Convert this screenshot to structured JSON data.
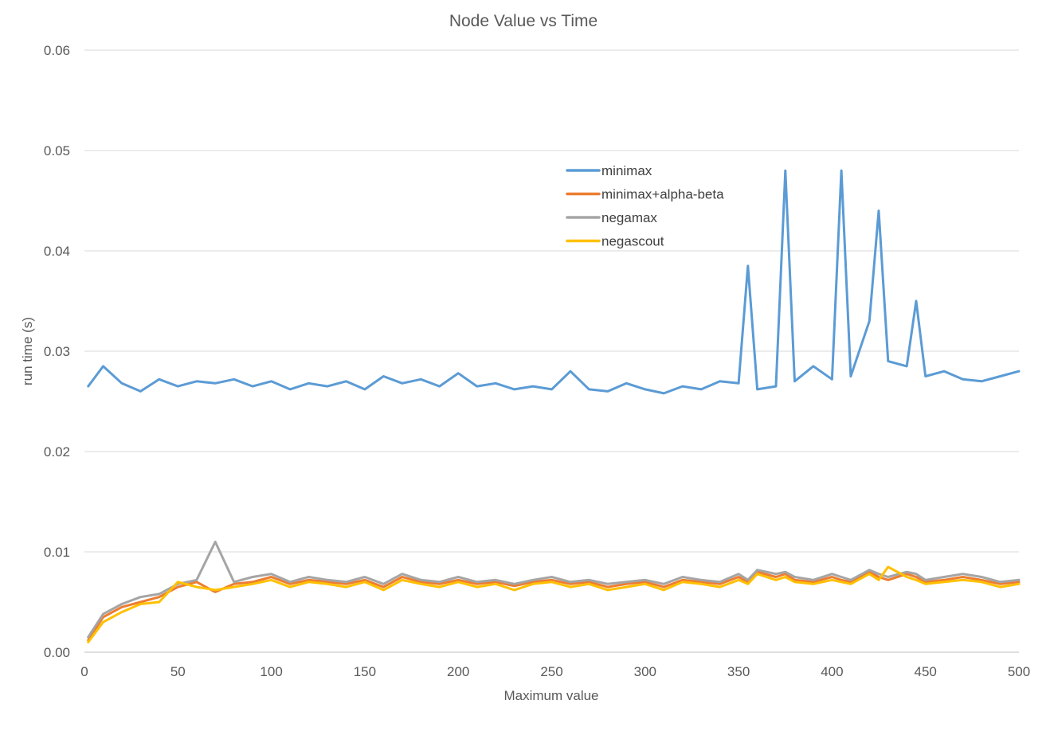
{
  "chart_data": {
    "type": "line",
    "title": "Node Value vs Time",
    "xlabel": "Maximum value",
    "ylabel": "run time (s)",
    "xlim": [
      0,
      500
    ],
    "ylim": [
      0,
      0.06
    ],
    "x_ticks": [
      "0",
      "50",
      "100",
      "150",
      "200",
      "250",
      "300",
      "350",
      "400",
      "450",
      "500"
    ],
    "y_ticks": [
      "0.00",
      "0.01",
      "0.02",
      "0.03",
      "0.04",
      "0.05",
      "0.06"
    ],
    "grid": "horizontal",
    "legend_position": "inside-top-center-right",
    "x": [
      2,
      10,
      20,
      30,
      40,
      50,
      60,
      70,
      80,
      90,
      100,
      110,
      120,
      130,
      140,
      150,
      160,
      170,
      180,
      190,
      200,
      210,
      220,
      230,
      240,
      250,
      260,
      270,
      280,
      290,
      300,
      310,
      320,
      330,
      340,
      350,
      355,
      360,
      370,
      375,
      380,
      390,
      400,
      405,
      410,
      420,
      425,
      430,
      440,
      445,
      450,
      460,
      470,
      480,
      490,
      500
    ],
    "series": [
      {
        "name": "minimax",
        "color": "#5b9bd5",
        "values": [
          0.0265,
          0.0285,
          0.0268,
          0.026,
          0.0272,
          0.0265,
          0.027,
          0.0268,
          0.0272,
          0.0265,
          0.027,
          0.0262,
          0.0268,
          0.0265,
          0.027,
          0.0262,
          0.0275,
          0.0268,
          0.0272,
          0.0265,
          0.0278,
          0.0265,
          0.0268,
          0.0262,
          0.0265,
          0.0262,
          0.028,
          0.0262,
          0.026,
          0.0268,
          0.0262,
          0.0258,
          0.0265,
          0.0262,
          0.027,
          0.0268,
          0.0385,
          0.0262,
          0.0265,
          0.048,
          0.027,
          0.0285,
          0.0272,
          0.048,
          0.0275,
          0.033,
          0.044,
          0.029,
          0.0285,
          0.035,
          0.0275,
          0.028,
          0.0272,
          0.027,
          0.0275,
          0.028
        ]
      },
      {
        "name": "minimax+alpha-beta",
        "color": "#ed7d31",
        "values": [
          0.0012,
          0.0035,
          0.0045,
          0.005,
          0.0055,
          0.0065,
          0.007,
          0.006,
          0.0068,
          0.007,
          0.0075,
          0.0068,
          0.0072,
          0.007,
          0.0068,
          0.0072,
          0.0065,
          0.0075,
          0.007,
          0.0068,
          0.0072,
          0.0068,
          0.007,
          0.0066,
          0.007,
          0.0072,
          0.0068,
          0.007,
          0.0065,
          0.0068,
          0.007,
          0.0065,
          0.0072,
          0.007,
          0.0068,
          0.0075,
          0.007,
          0.008,
          0.0075,
          0.0078,
          0.0072,
          0.007,
          0.0075,
          0.0072,
          0.007,
          0.008,
          0.0075,
          0.0072,
          0.0078,
          0.0075,
          0.007,
          0.0072,
          0.0075,
          0.0072,
          0.0068,
          0.007
        ]
      },
      {
        "name": "negamax",
        "color": "#a5a5a5",
        "values": [
          0.0015,
          0.0038,
          0.0048,
          0.0055,
          0.0058,
          0.0068,
          0.0072,
          0.011,
          0.007,
          0.0075,
          0.0078,
          0.007,
          0.0075,
          0.0072,
          0.007,
          0.0075,
          0.0068,
          0.0078,
          0.0072,
          0.007,
          0.0075,
          0.007,
          0.0072,
          0.0068,
          0.0072,
          0.0075,
          0.007,
          0.0072,
          0.0068,
          0.007,
          0.0072,
          0.0068,
          0.0075,
          0.0072,
          0.007,
          0.0078,
          0.0072,
          0.0082,
          0.0078,
          0.008,
          0.0075,
          0.0072,
          0.0078,
          0.0075,
          0.0072,
          0.0082,
          0.0078,
          0.0075,
          0.008,
          0.0078,
          0.0072,
          0.0075,
          0.0078,
          0.0075,
          0.007,
          0.0072
        ]
      },
      {
        "name": "negascout",
        "color": "#ffc000",
        "values": [
          0.001,
          0.003,
          0.004,
          0.0048,
          0.005,
          0.007,
          0.0065,
          0.0062,
          0.0065,
          0.0068,
          0.0072,
          0.0065,
          0.007,
          0.0068,
          0.0065,
          0.007,
          0.0062,
          0.0072,
          0.0068,
          0.0065,
          0.007,
          0.0065,
          0.0068,
          0.0062,
          0.0068,
          0.007,
          0.0065,
          0.0068,
          0.0062,
          0.0065,
          0.0068,
          0.0062,
          0.007,
          0.0068,
          0.0065,
          0.0072,
          0.0068,
          0.0078,
          0.0072,
          0.0075,
          0.007,
          0.0068,
          0.0072,
          0.007,
          0.0068,
          0.0078,
          0.0072,
          0.0085,
          0.0075,
          0.0072,
          0.0068,
          0.007,
          0.0072,
          0.007,
          0.0065,
          0.0068
        ]
      }
    ]
  }
}
